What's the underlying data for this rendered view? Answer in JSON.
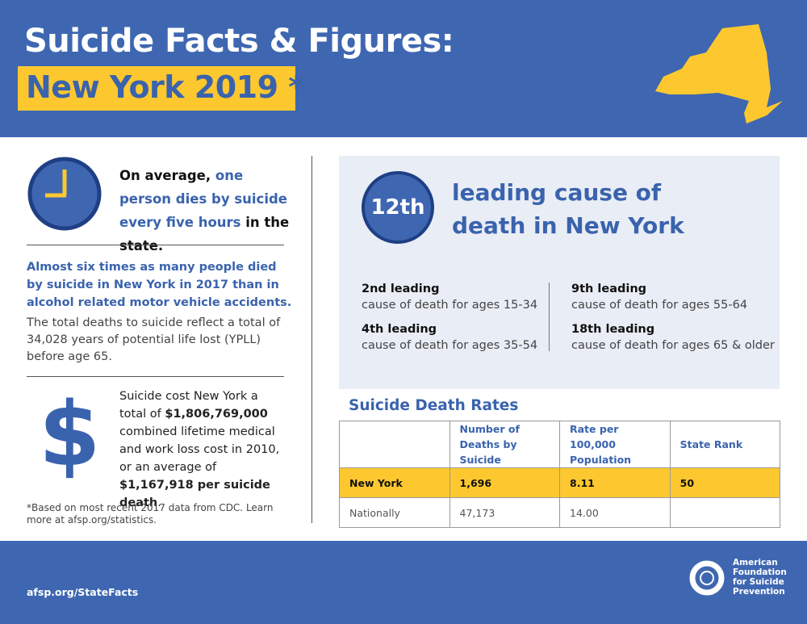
{
  "header": {
    "title": "Suicide Facts & Figures:",
    "subtitle": "New York 2019 *"
  },
  "intro": {
    "pre": "On average, ",
    "highlight": "one person dies by suicide every five hours",
    "post": " in the state."
  },
  "comparison": "Almost six times as many people died by suicide in New York in 2017 than in alcohol related motor vehicle accidents.",
  "yppl": "The total deaths to suicide reflect a total of 34,028 years of potential life lost (YPLL) before age 65.",
  "cost": {
    "icon": "$",
    "parts": [
      "Suicide cost New York a total of ",
      "$1,806,769,000",
      " combined lifetime medical and work loss cost in 2010, or an average of ",
      "$1,167,918 per suicide death",
      "."
    ]
  },
  "footnote": "*Based on most recent 2017 data from CDC. Learn more at afsp.org/statistics.",
  "rank": {
    "badge": "12th",
    "heading": "leading cause of death in New York",
    "items": [
      {
        "rank": "2nd leading",
        "desc": "cause of death for ages 15-34"
      },
      {
        "rank": "4th leading",
        "desc": "cause of death for ages 35-54"
      },
      {
        "rank": "9th leading",
        "desc": "cause of death for ages 55-64"
      },
      {
        "rank": "18th leading",
        "desc": "cause of death for ages 65 & older"
      }
    ]
  },
  "table": {
    "title": "Suicide Death Rates",
    "header": [
      "",
      "Number of Deaths by Suicide",
      "Rate per 100,000 Population",
      "State Rank"
    ],
    "rows": [
      [
        "New York",
        "1,696",
        "8.11",
        "50"
      ],
      [
        "Nationally",
        "47,173",
        "14.00",
        ""
      ]
    ]
  },
  "footer": {
    "url": "afsp.org/StateFacts",
    "logo": "American Foundation for Suicide Prevention"
  }
}
